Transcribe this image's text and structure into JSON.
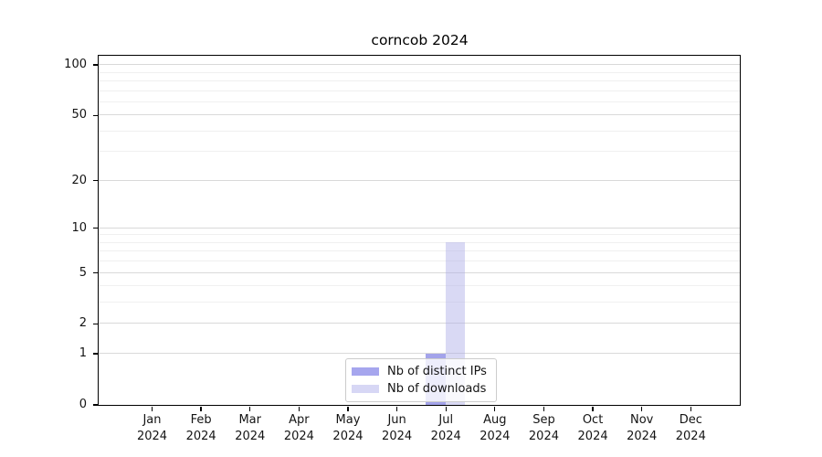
{
  "page": {
    "background": "#ffffff"
  },
  "chart_data": {
    "type": "bar",
    "title": "corncob 2024",
    "xlabel": "",
    "ylabel": "",
    "x_month_labels": [
      "Jan",
      "Feb",
      "Mar",
      "Apr",
      "May",
      "Jun",
      "Jul",
      "Aug",
      "Sep",
      "Oct",
      "Nov",
      "Dec"
    ],
    "x_year_label": "2024",
    "y_scale": "log1p",
    "ylim": [
      0,
      113.5
    ],
    "y_tick_labels": [
      0,
      1,
      2,
      5,
      10,
      20,
      50,
      100
    ],
    "y_major_gridlines": [
      1,
      2,
      5,
      10,
      20,
      50,
      100
    ],
    "y_minor_gridlines": [
      3,
      4,
      6,
      7,
      8,
      9,
      30,
      40,
      60,
      70,
      80,
      90
    ],
    "grid": "on",
    "legend_position": "lower center",
    "series": [
      {
        "name": "Nb of distinct IPs",
        "fill": "rgba(51,51,208,0.45)",
        "swatch_color": "#a6a6ee",
        "values": [
          0,
          0,
          0,
          0,
          0,
          0,
          1,
          0,
          0,
          0,
          0,
          0
        ]
      },
      {
        "name": "Nb of downloads",
        "fill": "rgba(171,171,231,0.45)",
        "swatch_color": "#d7d7f5",
        "values": [
          0,
          0,
          0,
          0,
          0,
          0,
          8,
          0,
          0,
          0,
          0,
          0
        ]
      }
    ],
    "colors": {
      "major_grid": "#d9d9d9",
      "minor_grid": "#f0f0f0",
      "spine": "#000000",
      "text": "#141414",
      "legend_border": "#cccccc"
    }
  }
}
